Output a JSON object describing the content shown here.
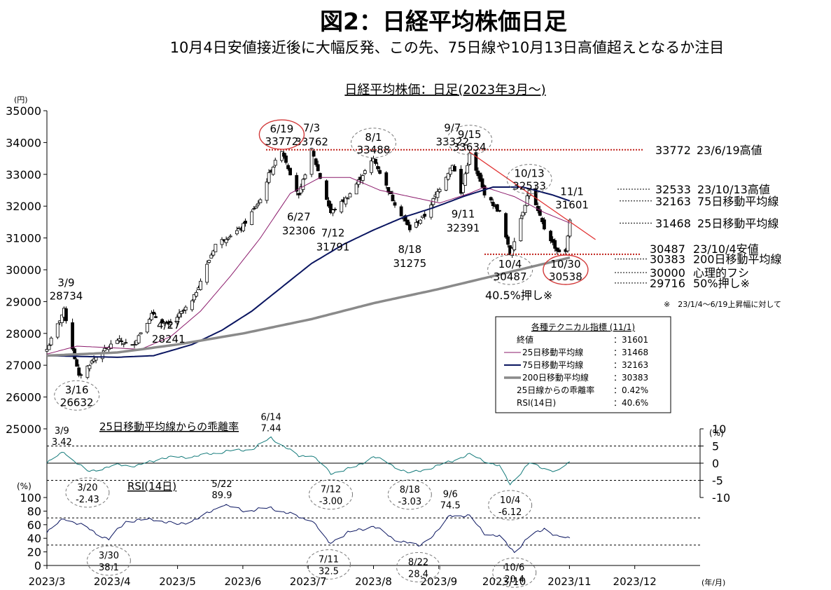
{
  "title": "図2：日経平均株価日足",
  "subtitle": "10月4日安値接近後に大幅反発、この先、75日線や10月13日高値超えとなるか注目",
  "chart_data": {
    "type": "line",
    "title": "日経平均株価：日足(2023年3月～)",
    "price_unit": "(円)",
    "pct_unit": "(%)",
    "x_unit": "(年/月)",
    "x_ticks": [
      "2023/3",
      "2023/4",
      "2023/5",
      "2023/6",
      "2023/7",
      "2023/8",
      "2023/9",
      "2023/10",
      "2023/11",
      "2023/12"
    ],
    "price_axis": {
      "min": 25000,
      "max": 35000,
      "ticks": [
        "35000",
        "34000",
        "33000",
        "32000",
        "31000",
        "30000",
        "29000",
        "28000",
        "27000",
        "26000",
        "25000"
      ]
    },
    "dev_axis": {
      "min": -10,
      "max": 10,
      "ticks": [
        "10",
        "5",
        "0",
        "-5",
        "-10"
      ],
      "dashed": [
        5,
        -5
      ]
    },
    "rsi_axis": {
      "min": 0,
      "max": 100,
      "ticks": [
        "100",
        "80",
        "60",
        "40",
        "20",
        "0"
      ],
      "dashed": [
        70,
        30
      ]
    },
    "price_keypoints": [
      [
        "2023-03-01",
        27500
      ],
      [
        "2023-03-09",
        28734
      ],
      [
        "2023-03-16",
        26632
      ],
      [
        "2023-03-23",
        27200
      ],
      [
        "2023-04-03",
        27800
      ],
      [
        "2023-04-10",
        27600
      ],
      [
        "2023-04-19",
        28600
      ],
      [
        "2023-04-27",
        28241
      ],
      [
        "2023-05-08",
        29000
      ],
      [
        "2023-05-19",
        30800
      ],
      [
        "2023-05-31",
        31300
      ],
      [
        "2023-06-09",
        32200
      ],
      [
        "2023-06-13",
        33000
      ],
      [
        "2023-06-19",
        33772
      ],
      [
        "2023-06-27",
        32306
      ],
      [
        "2023-07-03",
        33762
      ],
      [
        "2023-07-12",
        31791
      ],
      [
        "2023-07-20",
        32300
      ],
      [
        "2023-08-01",
        33488
      ],
      [
        "2023-08-10",
        32200
      ],
      [
        "2023-08-18",
        31275
      ],
      [
        "2023-08-25",
        31700
      ],
      [
        "2023-09-07",
        33322
      ],
      [
        "2023-09-11",
        32391
      ],
      [
        "2023-09-15",
        33634
      ],
      [
        "2023-09-22",
        32400
      ],
      [
        "2023-09-29",
        31800
      ],
      [
        "2023-10-04",
        30487
      ],
      [
        "2023-10-13",
        32533
      ],
      [
        "2023-10-20",
        31300
      ],
      [
        "2023-10-26",
        30600
      ],
      [
        "2023-10-30",
        30538
      ],
      [
        "2023-11-01",
        31601
      ]
    ],
    "series": [
      {
        "name": "25日移動平均線",
        "color": "#8b1a6b",
        "values": [
          [
            "2023-03-01",
            27350
          ],
          [
            "2023-03-15",
            27600
          ],
          [
            "2023-03-31",
            27550
          ],
          [
            "2023-04-14",
            27500
          ],
          [
            "2023-04-28",
            27900
          ],
          [
            "2023-05-12",
            28700
          ],
          [
            "2023-05-26",
            29800
          ],
          [
            "2023-06-09",
            31000
          ],
          [
            "2023-06-23",
            32400
          ],
          [
            "2023-07-07",
            32900
          ],
          [
            "2023-07-21",
            32900
          ],
          [
            "2023-08-04",
            32500
          ],
          [
            "2023-08-18",
            32300
          ],
          [
            "2023-09-01",
            32100
          ],
          [
            "2023-09-15",
            32400
          ],
          [
            "2023-09-22",
            32600
          ],
          [
            "2023-10-06",
            32300
          ],
          [
            "2023-10-20",
            31800
          ],
          [
            "2023-11-01",
            31468
          ]
        ]
      },
      {
        "name": "75日移動平均線",
        "color": "#0a1560",
        "values": [
          [
            "2023-03-01",
            27300
          ],
          [
            "2023-04-03",
            27250
          ],
          [
            "2023-04-20",
            27300
          ],
          [
            "2023-05-08",
            27650
          ],
          [
            "2023-05-22",
            28100
          ],
          [
            "2023-06-05",
            28700
          ],
          [
            "2023-06-19",
            29450
          ],
          [
            "2023-07-03",
            30200
          ],
          [
            "2023-07-18",
            30800
          ],
          [
            "2023-08-01",
            31250
          ],
          [
            "2023-08-15",
            31650
          ],
          [
            "2023-08-29",
            31950
          ],
          [
            "2023-09-12",
            32300
          ],
          [
            "2023-09-26",
            32600
          ],
          [
            "2023-10-10",
            32600
          ],
          [
            "2023-10-24",
            32350
          ],
          [
            "2023-11-01",
            32163
          ]
        ]
      },
      {
        "name": "200日移動平均線",
        "color": "#8a8a8a",
        "values": [
          [
            "2023-03-01",
            27300
          ],
          [
            "2023-04-03",
            27400
          ],
          [
            "2023-05-01",
            27650
          ],
          [
            "2023-06-01",
            28000
          ],
          [
            "2023-07-03",
            28450
          ],
          [
            "2023-08-01",
            28950
          ],
          [
            "2023-09-01",
            29400
          ],
          [
            "2023-10-02",
            29900
          ],
          [
            "2023-11-01",
            30383
          ]
        ]
      }
    ],
    "deviation_keypoints": [
      [
        "2023-03-01",
        0
      ],
      [
        "2023-03-09",
        3.42
      ],
      [
        "2023-03-13",
        1
      ],
      [
        "2023-03-20",
        -2.43
      ],
      [
        "2023-04-04",
        -0.5
      ],
      [
        "2023-04-12",
        -0.8
      ],
      [
        "2023-04-24",
        1.5
      ],
      [
        "2023-05-10",
        2
      ],
      [
        "2023-05-24",
        3.5
      ],
      [
        "2023-06-05",
        4
      ],
      [
        "2023-06-14",
        7.44
      ],
      [
        "2023-06-27",
        2
      ],
      [
        "2023-07-03",
        2.5
      ],
      [
        "2023-07-12",
        -3.0
      ],
      [
        "2023-07-24",
        -1
      ],
      [
        "2023-08-01",
        2
      ],
      [
        "2023-08-18",
        -3.03
      ],
      [
        "2023-08-30",
        -1
      ],
      [
        "2023-09-15",
        2.5
      ],
      [
        "2023-09-29",
        -1
      ],
      [
        "2023-10-04",
        -6.12
      ],
      [
        "2023-10-13",
        0
      ],
      [
        "2023-10-20",
        -1.5
      ],
      [
        "2023-10-26",
        -2.5
      ],
      [
        "2023-11-01",
        0.42
      ]
    ],
    "rsi_keypoints": [
      [
        "2023-03-01",
        48
      ],
      [
        "2023-03-09",
        70
      ],
      [
        "2023-03-20",
        55
      ],
      [
        "2023-03-30",
        38.1
      ],
      [
        "2023-04-07",
        65
      ],
      [
        "2023-04-20",
        68
      ],
      [
        "2023-05-01",
        60
      ],
      [
        "2023-05-12",
        70
      ],
      [
        "2023-05-22",
        89.9
      ],
      [
        "2023-06-02",
        80
      ],
      [
        "2023-06-14",
        85
      ],
      [
        "2023-06-28",
        70
      ],
      [
        "2023-07-03",
        68
      ],
      [
        "2023-07-11",
        32.5
      ],
      [
        "2023-07-20",
        48
      ],
      [
        "2023-08-01",
        58
      ],
      [
        "2023-08-10",
        40
      ],
      [
        "2023-08-22",
        28.4
      ],
      [
        "2023-08-31",
        50
      ],
      [
        "2023-09-06",
        74.5
      ],
      [
        "2023-09-15",
        72
      ],
      [
        "2023-09-22",
        48
      ],
      [
        "2023-09-29",
        42
      ],
      [
        "2023-10-06",
        20.4
      ],
      [
        "2023-10-13",
        42
      ],
      [
        "2023-10-20",
        55
      ],
      [
        "2023-10-26",
        42
      ],
      [
        "2023-11-01",
        40.6
      ]
    ],
    "high_line": {
      "value": 33772,
      "label_value": "33772",
      "label_text": "23/6/19高値"
    },
    "low_line": {
      "value": 30487,
      "label_value": "30487",
      "label_text": "23/10/4安値"
    },
    "trend_line": {
      "from": [
        "2023-09-15",
        33700
      ],
      "to": [
        "2023-11-13",
        30950
      ]
    },
    "right_levels": [
      {
        "value": "32533",
        "text": "23/10/13高値",
        "y": 32533
      },
      {
        "value": "32163",
        "text": "75日移動平均線",
        "y": 32163
      },
      {
        "value": "31468",
        "text": "25日移動平均線",
        "y": 31468
      },
      {
        "value": "30383",
        "text": "200日移動平均線",
        "y": 30383
      },
      {
        "value": "30000",
        "text": "心理的フシ",
        "y": 30000
      },
      {
        "value": "29716",
        "text": "50%押し※",
        "y": 29716
      }
    ],
    "price_labels": [
      {
        "date": "3/9",
        "value": "28734",
        "x": "2023-03-10",
        "y": 28734,
        "pos": "above"
      },
      {
        "date": "4/27",
        "value": "28241",
        "x": "2023-04-27",
        "y": 28241,
        "pos": "belowtight"
      },
      {
        "date": "6/27",
        "value": "32306",
        "x": "2023-06-27",
        "y": 32306,
        "pos": "below"
      },
      {
        "date": "7/3",
        "value": "33762",
        "x": "2023-07-03",
        "y": 33762,
        "pos": "abovetight"
      },
      {
        "date": "7/12",
        "value": "31791",
        "x": "2023-07-13",
        "y": 31791,
        "pos": "below"
      },
      {
        "date": "8/18",
        "value": "31275",
        "x": "2023-08-18",
        "y": 31275,
        "pos": "below"
      },
      {
        "date": "9/7",
        "value": "33322",
        "x": "2023-09-07",
        "y": 33322,
        "pos": "abovetight"
      },
      {
        "date": "9/11",
        "value": "32391",
        "x": "2023-09-12",
        "y": 32391,
        "pos": "below"
      },
      {
        "date": "11/1",
        "value": "31601",
        "x": "2023-11-02",
        "y": 31601,
        "pos": "above"
      }
    ],
    "price_circled": [
      {
        "date": "6/19",
        "value": "33772",
        "x": "2023-06-19",
        "y": 34250,
        "style": "red"
      },
      {
        "date": "8/1",
        "value": "33488",
        "x": "2023-08-01",
        "y": 33990,
        "style": "gray"
      },
      {
        "date": "9/15",
        "value": "33634",
        "x": "2023-09-15",
        "y": 34080,
        "style": "gray"
      },
      {
        "date": "10/13",
        "value": "32533",
        "x": "2023-10-13",
        "y": 32850,
        "style": "gray"
      },
      {
        "date": "3/16",
        "value": "26632",
        "x": "2023-03-15",
        "y": 26050,
        "style": "gray"
      },
      {
        "date": "10/4",
        "value": "30487",
        "x": "2023-10-04",
        "y": 30000,
        "style": "gray"
      },
      {
        "date": "10/30",
        "value": "30538",
        "x": "2023-10-30",
        "y": 30000,
        "style": "red"
      }
    ],
    "dev_labels": [
      {
        "date": "3/9",
        "value": "3.42",
        "x": "2023-03-08",
        "y": 3.42,
        "circled": false
      },
      {
        "date": "6/14",
        "value": "7.44",
        "x": "2023-06-14",
        "y": 7.44,
        "circled": false
      },
      {
        "date": "3/20",
        "value": "-2.43",
        "x": "2023-03-20",
        "y": -2.43,
        "circled": true
      },
      {
        "date": "7/12",
        "value": "-3.00",
        "x": "2023-07-12",
        "y": -3.0,
        "circled": true
      },
      {
        "date": "8/18",
        "value": "-3.03",
        "x": "2023-08-18",
        "y": -3.03,
        "circled": true
      },
      {
        "date": "10/4",
        "value": "-6.12",
        "x": "2023-10-04",
        "y": -6.12,
        "circled": true
      }
    ],
    "rsi_labels": [
      {
        "date": "5/22",
        "value": "89.9",
        "x": "2023-05-22",
        "y": 89.9,
        "circled": false
      },
      {
        "date": "9/6",
        "value": "74.5",
        "x": "2023-09-06",
        "y": 74.5,
        "circled": false
      },
      {
        "date": "3/30",
        "value": "38.1",
        "x": "2023-03-30",
        "y": 38.1,
        "circled": true
      },
      {
        "date": "7/11",
        "value": "32.5",
        "x": "2023-07-11",
        "y": 32.5,
        "circled": true
      },
      {
        "date": "8/22",
        "value": "28.4",
        "x": "2023-08-22",
        "y": 28.4,
        "circled": true
      },
      {
        "date": "10/6",
        "value": "20.4",
        "x": "2023-10-06",
        "y": 20.4,
        "circled": true
      }
    ],
    "pushback_label": "40.5%押し※",
    "footnote": "※　23/1/4～6/19上昇幅に対して",
    "dev_title": "25日移動平均線からの乖離率",
    "rsi_title": "RSI(14日)",
    "legend": {
      "title": "各種テクニカル指標 (11/1)",
      "rows": [
        {
          "label": "終値",
          "value": "：31601",
          "swatch": ""
        },
        {
          "label": "25日移動平均線",
          "value": "：31468",
          "swatch": "#8b1a6b"
        },
        {
          "label": "75日移動平均線",
          "value": "：32163",
          "swatch": "#0a1560"
        },
        {
          "label": "200日移動平均線",
          "value": "：30383",
          "swatch": "#8a8a8a"
        },
        {
          "label": "25日線からの乖離率",
          "value": "：0.42%",
          "swatch": ""
        },
        {
          "label": "RSI(14日)",
          "value": "：40.6%",
          "swatch": ""
        }
      ]
    }
  }
}
